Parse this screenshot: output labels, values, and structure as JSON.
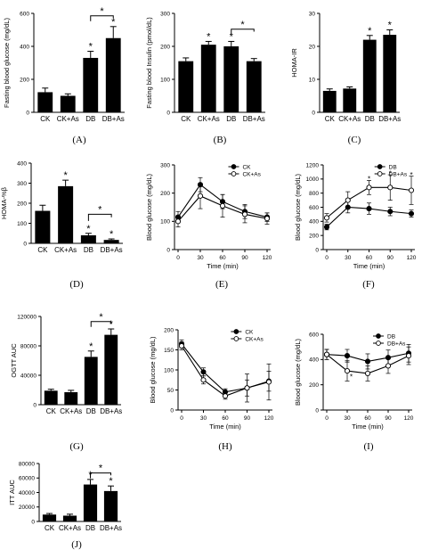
{
  "chart_data": [
    {
      "id": "A",
      "type": "bar",
      "panel_label": "(A)",
      "ylabel": "Fasting blood glucose (mg/dL)",
      "categories": [
        "CK",
        "CK+As",
        "DB",
        "DB+As"
      ],
      "values": [
        122,
        100,
        330,
        450
      ],
      "errors": [
        25,
        12,
        40,
        70
      ],
      "ylim": [
        0,
        600
      ],
      "yticks": [
        "0",
        "200",
        "400",
        "600"
      ],
      "ytick_values": [
        0,
        200,
        400,
        600
      ],
      "stars": [
        "",
        "",
        "*",
        "*"
      ],
      "bracket": {
        "from": 2,
        "to": 3,
        "y": 585,
        "label": "*"
      }
    },
    {
      "id": "B",
      "type": "bar",
      "panel_label": "(B)",
      "ylabel": "Fasting blood Insulin (pmol/dL)",
      "categories": [
        "CK",
        "CK+As",
        "DB",
        "DB+As"
      ],
      "values": [
        155,
        205,
        200,
        155
      ],
      "errors": [
        10,
        10,
        15,
        8
      ],
      "ylim": [
        0,
        300
      ],
      "yticks": [
        "0",
        "100",
        "200",
        "300"
      ],
      "ytick_values": [
        0,
        100,
        200,
        300
      ],
      "stars": [
        "",
        "*",
        "*",
        ""
      ],
      "bracket": {
        "from": 2,
        "to": 3,
        "y": 252,
        "label": "*"
      }
    },
    {
      "id": "C",
      "type": "bar",
      "panel_label": "(C)",
      "ylabel": "HOMA-IR",
      "categories": [
        "CK",
        "CK+As",
        "DB",
        "DB+As"
      ],
      "values": [
        6.5,
        7.2,
        22,
        23.5
      ],
      "errors": [
        0.6,
        0.5,
        1.3,
        1.5
      ],
      "ylim": [
        0,
        30
      ],
      "yticks": [
        "0",
        "10",
        "20",
        "30"
      ],
      "ytick_values": [
        0,
        10,
        20,
        30
      ],
      "stars": [
        "",
        "",
        "*",
        "*"
      ],
      "bracket": null
    },
    {
      "id": "D",
      "type": "bar",
      "panel_label": "(D)",
      "ylabel": "HOMA-%β",
      "categories": [
        "CK",
        "CK+As",
        "DB",
        "DB+As"
      ],
      "values": [
        162,
        285,
        40,
        17
      ],
      "errors": [
        28,
        30,
        10,
        5
      ],
      "ylim": [
        0,
        400
      ],
      "yticks": [
        "0",
        "100",
        "200",
        "300",
        "400"
      ],
      "ytick_values": [
        0,
        100,
        200,
        300,
        400
      ],
      "stars": [
        "",
        "*",
        "*",
        "*"
      ],
      "bracket": {
        "from": 2,
        "to": 3,
        "y": 145,
        "label": "*"
      }
    },
    {
      "id": "E",
      "type": "line",
      "panel_label": "(E)",
      "ylabel": "Blood glucose (mg/dL)",
      "xlabel": "Time (min)",
      "x": [
        0,
        30,
        60,
        90,
        120
      ],
      "xticks": [
        "0",
        "30",
        "60",
        "90",
        "120"
      ],
      "xtick_values": [
        0,
        30,
        60,
        90,
        120
      ],
      "ylim": [
        0,
        300
      ],
      "yticks": [
        "0",
        "100",
        "200",
        "300"
      ],
      "ytick_values": [
        0,
        100,
        200,
        300
      ],
      "xlim": [
        0,
        120
      ],
      "series": [
        {
          "name": "CK",
          "values": [
            115,
            230,
            170,
            135,
            115
          ],
          "errors": [
            20,
            25,
            25,
            25,
            15
          ],
          "filled": true
        },
        {
          "name": "CK+As",
          "values": [
            100,
            190,
            155,
            125,
            110
          ],
          "errors": [
            20,
            45,
            40,
            30,
            20
          ],
          "filled": false
        }
      ],
      "stars": []
    },
    {
      "id": "F",
      "type": "line",
      "panel_label": "(F)",
      "ylabel": "Blood glucose (mg/dL)",
      "xlabel": "Time (min)",
      "x": [
        0,
        30,
        60,
        90,
        120
      ],
      "xticks": [
        "0",
        "30",
        "60",
        "90",
        "120"
      ],
      "xtick_values": [
        0,
        30,
        60,
        90,
        120
      ],
      "ylim": [
        0,
        1200
      ],
      "yticks": [
        "0",
        "200",
        "400",
        "600",
        "800",
        "1000",
        "1200"
      ],
      "ytick_values": [
        0,
        200,
        400,
        600,
        800,
        1000,
        1200
      ],
      "xlim": [
        0,
        120
      ],
      "series": [
        {
          "name": "DB",
          "values": [
            320,
            600,
            580,
            540,
            510
          ],
          "errors": [
            40,
            80,
            80,
            60,
            50
          ],
          "filled": true
        },
        {
          "name": "DB+As",
          "values": [
            450,
            700,
            880,
            880,
            840
          ],
          "errors": [
            60,
            120,
            100,
            180,
            200
          ],
          "filled": false
        }
      ],
      "stars": [
        {
          "x": 60,
          "y": 1005
        },
        {
          "x": 90,
          "y": 1080
        },
        {
          "x": 120,
          "y": 1060
        }
      ]
    },
    {
      "id": "G",
      "type": "bar",
      "panel_label": "(G)",
      "ylabel": "OGTT AUC",
      "categories": [
        "CK",
        "CK+As",
        "DB",
        "DB+As"
      ],
      "values": [
        19000,
        17000,
        65000,
        95000
      ],
      "errors": [
        2000,
        2500,
        8000,
        8000
      ],
      "ylim": [
        0,
        120000
      ],
      "yticks": [
        "0",
        "40000",
        "80000",
        "120000"
      ],
      "ytick_values": [
        0,
        40000,
        80000,
        120000
      ],
      "stars": [
        "",
        "",
        "*",
        "*"
      ],
      "bracket": {
        "from": 2,
        "to": 3,
        "y": 113000,
        "label": "*"
      }
    },
    {
      "id": "H",
      "type": "line",
      "panel_label": "(H)",
      "ylabel": "Blood glucose (mg/dL)",
      "xlabel": "Time (min)",
      "x": [
        0,
        30,
        60,
        90,
        120
      ],
      "xticks": [
        "0",
        "30",
        "60",
        "90",
        "120"
      ],
      "xtick_values": [
        0,
        30,
        60,
        90,
        120
      ],
      "ylim": [
        0,
        200
      ],
      "yticks": [
        "0",
        "50",
        "100",
        "150",
        "200"
      ],
      "ytick_values": [
        0,
        50,
        100,
        150,
        200
      ],
      "xlim": [
        0,
        120
      ],
      "series": [
        {
          "name": "CK",
          "values": [
            165,
            95,
            45,
            55,
            72
          ],
          "errors": [
            10,
            10,
            8,
            20,
            25
          ],
          "filled": true
        },
        {
          "name": "CK+As",
          "values": [
            160,
            75,
            35,
            55,
            70
          ],
          "errors": [
            10,
            10,
            8,
            35,
            45
          ],
          "filled": false
        }
      ],
      "stars": []
    },
    {
      "id": "I",
      "type": "line",
      "panel_label": "(I)",
      "ylabel": "Blood glucose (mg/dL)",
      "xlabel": "Time (min)",
      "x": [
        0,
        30,
        60,
        90,
        120
      ],
      "xticks": [
        "0",
        "30",
        "60",
        "90",
        "120"
      ],
      "xtick_values": [
        0,
        30,
        60,
        90,
        120
      ],
      "ylim": [
        0,
        600
      ],
      "yticks": [
        "0",
        "200",
        "400",
        "600"
      ],
      "ytick_values": [
        0,
        200,
        400,
        600
      ],
      "xlim": [
        0,
        120
      ],
      "series": [
        {
          "name": "DB",
          "values": [
            440,
            430,
            385,
            415,
            450
          ],
          "errors": [
            40,
            50,
            60,
            60,
            70
          ],
          "filled": true
        },
        {
          "name": "DB+As",
          "values": [
            440,
            310,
            290,
            350,
            430
          ],
          "errors": [
            40,
            80,
            60,
            60,
            70
          ],
          "filled": false
        }
      ],
      "stars": [
        {
          "x": 36,
          "y": 265
        }
      ]
    },
    {
      "id": "J",
      "type": "bar",
      "panel_label": "(J)",
      "ylabel": "ITT AUC",
      "categories": [
        "CK",
        "CK+As",
        "DB",
        "DB+As"
      ],
      "values": [
        9500,
        8000,
        51000,
        42000
      ],
      "errors": [
        1500,
        2000,
        7000,
        7000
      ],
      "ylim": [
        0,
        80000
      ],
      "yticks": [
        "0",
        "20000",
        "40000",
        "60000",
        "80000"
      ],
      "ytick_values": [
        0,
        20000,
        40000,
        60000,
        80000
      ],
      "stars": [
        "",
        "",
        "*",
        "*"
      ],
      "bracket": {
        "from": 2,
        "to": 3,
        "y": 67000,
        "label": "*"
      }
    }
  ]
}
